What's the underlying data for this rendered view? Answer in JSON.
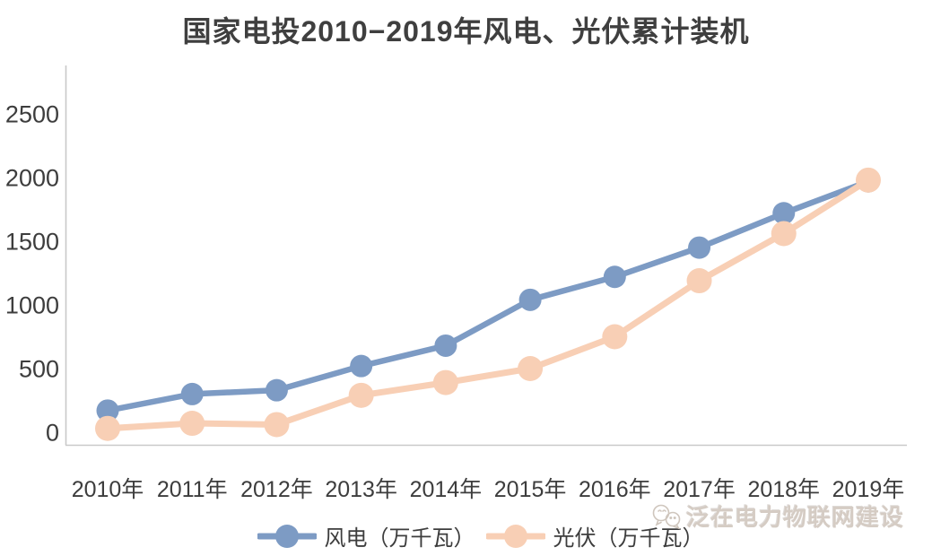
{
  "chart_data": {
    "type": "line",
    "title": "国家电投2010−2019年风电、光伏累计装机",
    "categories": [
      "2010年",
      "2011年",
      "2012年",
      "2013年",
      "2014年",
      "2015年",
      "2016年",
      "2017年",
      "2018年",
      "2019年"
    ],
    "series": [
      {
        "name": "风电（万千瓦）",
        "color": "#7D9BC4",
        "marker_radius": 12.5,
        "line_width": 6.5,
        "values": [
          170,
          300,
          330,
          520,
          680,
          1040,
          1220,
          1450,
          1720,
          1970
        ]
      },
      {
        "name": "光伏（万千瓦）",
        "color": "#F8CFB5",
        "marker_radius": 14,
        "line_width": 7,
        "values": [
          30,
          70,
          60,
          290,
          390,
          500,
          750,
          1190,
          1560,
          1980
        ]
      }
    ],
    "yticks": [
      0,
      500,
      1000,
      1500,
      2000,
      2500
    ],
    "ylim": [
      0,
      2880
    ],
    "grid": false,
    "legend_position": "bottom",
    "axis_color": "#C9C9C9",
    "text_color": "#3D3D3D"
  },
  "watermark": {
    "text": "泛在电力物联网建设",
    "icon": "wechat-icon"
  }
}
